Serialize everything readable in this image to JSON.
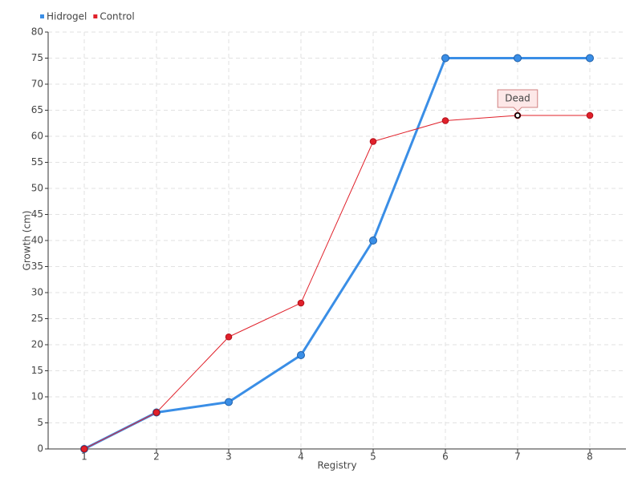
{
  "chart_data": {
    "type": "line",
    "x_label": "Registry",
    "y_label": "Growth (cm)",
    "categories": [
      "1",
      "2",
      "3",
      "4",
      "5",
      "6",
      "7",
      "8"
    ],
    "series": [
      {
        "name": "Hidrogel",
        "color": "#3a8ee6",
        "values": [
          0,
          7,
          9,
          18,
          40,
          75,
          75,
          75
        ]
      },
      {
        "name": "Control",
        "color": "#e0202a",
        "values": [
          0,
          7,
          21.5,
          28,
          59,
          63,
          64,
          64
        ]
      }
    ],
    "ylim": [
      0,
      80
    ],
    "yticks": [
      0,
      5,
      10,
      15,
      20,
      25,
      30,
      35,
      40,
      45,
      50,
      55,
      60,
      65,
      70,
      75,
      80
    ],
    "grid": true,
    "legend": "top-left",
    "annotations": [
      {
        "text": "Dead",
        "series": "Control",
        "category": "7"
      }
    ]
  }
}
